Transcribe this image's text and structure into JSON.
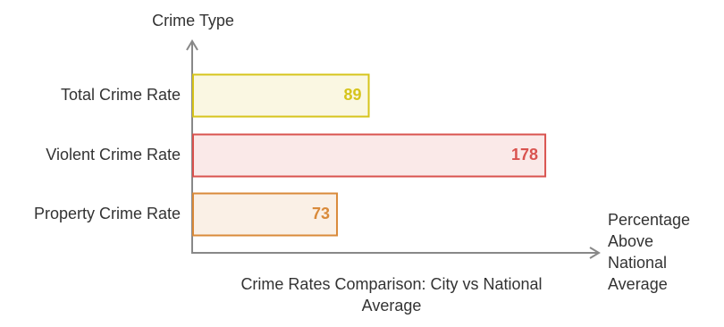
{
  "chart_data": {
    "type": "hbar",
    "title": "Crime Rates Comparison: City vs National Average",
    "x_label": "Percentage Above National Average",
    "y_label": "Crime Type",
    "categories": [
      "Total Crime Rate",
      "Violent Crime Rate",
      "Property Crime Rate"
    ],
    "values": [
      89,
      178,
      73
    ],
    "colors": [
      "#d6c41c",
      "#d9534f",
      "#d98a3a"
    ],
    "xlim": [
      0,
      205
    ]
  }
}
